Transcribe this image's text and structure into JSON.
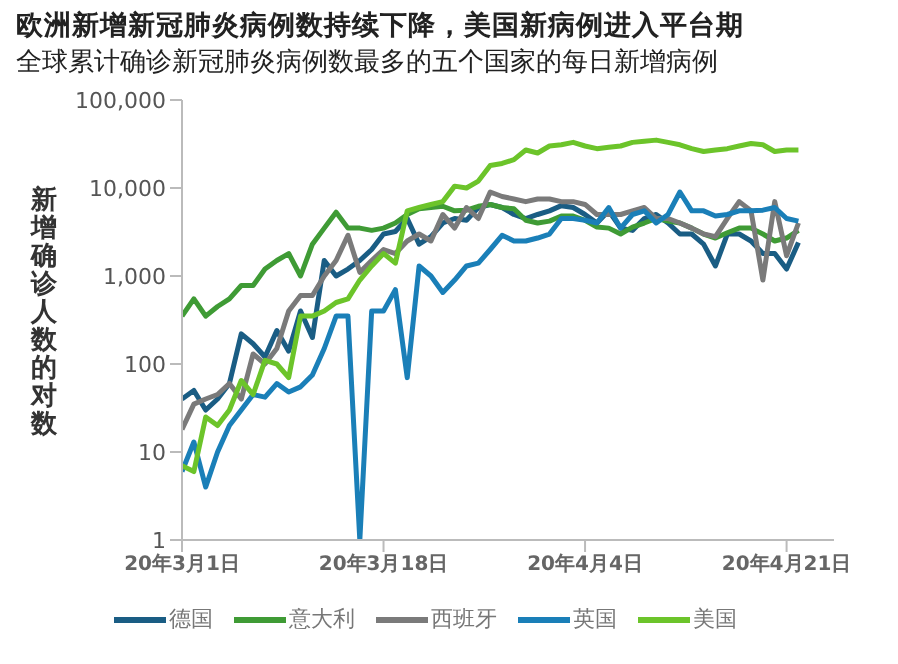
{
  "chart_data": {
    "type": "line",
    "title": "欧洲新增新冠肺炎病例数持续下降，美国新病例进入平台期",
    "subtitle": "全球累计确诊新冠肺炎病例数最多的五个国家的每日新增病例",
    "ylabel": "新增确诊人数的对数",
    "x": [
      "--03-01",
      "--03-02",
      "--03-03",
      "--03-04",
      "--03-05",
      "--03-06",
      "--03-07",
      "--03-08",
      "--03-09",
      "--03-10",
      "--03-11",
      "--03-12",
      "--03-13",
      "--03-14",
      "--03-15",
      "--03-16",
      "--03-17",
      "--03-18",
      "--03-19",
      "--03-20",
      "--03-21",
      "--03-22",
      "--03-23",
      "--03-24",
      "--03-25",
      "--03-26",
      "--03-27",
      "--03-28",
      "--03-29",
      "--03-30",
      "--03-31",
      "--04-01",
      "--04-02",
      "--04-03",
      "--04-04",
      "--04-05",
      "--04-06",
      "--04-07",
      "--04-08",
      "--04-09",
      "--04-10",
      "--04-11",
      "--04-12",
      "--04-13",
      "--04-14",
      "--04-15",
      "--04-16",
      "--04-17",
      "--04-18",
      "--04-19",
      "--04-20",
      "--04-21",
      "--04-22"
    ],
    "series": [
      {
        "name": "德国",
        "color": "#1a5d84",
        "values": [
          40,
          50,
          30,
          40,
          60,
          220,
          170,
          120,
          240,
          140,
          400,
          200,
          1500,
          1000,
          1200,
          1500,
          2000,
          3000,
          3200,
          4500,
          2300,
          2800,
          4000,
          4500,
          4300,
          6000,
          6500,
          6000,
          5000,
          4500,
          5000,
          5500,
          6300,
          6000,
          5000,
          4000,
          5500,
          3500,
          3300,
          4500,
          5000,
          4000,
          3000,
          3000,
          2300,
          1300,
          3000,
          3000,
          2500,
          1800,
          1800,
          1200,
          2400
        ]
      },
      {
        "name": "意大利",
        "color": "#3f9b35",
        "values": [
          350,
          550,
          350,
          450,
          550,
          780,
          780,
          1200,
          1500,
          1800,
          1000,
          2300,
          3500,
          5300,
          3500,
          3500,
          3300,
          3500,
          4000,
          5000,
          5800,
          6000,
          6200,
          5500,
          5600,
          6200,
          6500,
          6000,
          5800,
          4300,
          4000,
          4200,
          4800,
          4800,
          4300,
          3600,
          3500,
          3000,
          3600,
          4000,
          4500,
          4200,
          4000,
          3500,
          3000,
          2700,
          3100,
          3500,
          3500,
          3000,
          2500,
          2700,
          3300
        ]
      },
      {
        "name": "西班牙",
        "color": "#7a7a7a",
        "values": [
          18,
          35,
          40,
          45,
          60,
          40,
          130,
          100,
          150,
          400,
          600,
          600,
          1000,
          1500,
          2900,
          1100,
          1500,
          2000,
          1800,
          2500,
          3000,
          2500,
          5000,
          3500,
          6000,
          4500,
          9000,
          8000,
          7500,
          7000,
          7500,
          7500,
          7000,
          7000,
          6500,
          5000,
          5000,
          5000,
          5500,
          6000,
          4500,
          4500,
          4000,
          3500,
          3000,
          2800,
          4500,
          7000,
          5500,
          900,
          7000,
          1700,
          4000
        ]
      },
      {
        "name": "英国",
        "color": "#1a7fb8",
        "values": [
          6,
          13,
          4,
          10,
          20,
          30,
          45,
          42,
          60,
          48,
          55,
          75,
          150,
          350,
          350,
          1,
          400,
          400,
          700,
          70,
          1300,
          1000,
          650,
          900,
          1300,
          1400,
          2000,
          2900,
          2500,
          2500,
          2700,
          3000,
          4500,
          4500,
          4300,
          4000,
          6000,
          3500,
          5000,
          5500,
          4000,
          5000,
          9000,
          5500,
          5500,
          4800,
          5000,
          5500,
          5500,
          5600,
          6000,
          4500,
          4200
        ]
      },
      {
        "name": "美国",
        "color": "#6cc42a",
        "values": [
          7,
          6,
          25,
          20,
          30,
          65,
          45,
          110,
          100,
          70,
          350,
          350,
          400,
          500,
          550,
          900,
          1300,
          1800,
          1400,
          5500,
          6000,
          6500,
          7000,
          10500,
          10000,
          12000,
          18000,
          19000,
          21000,
          27000,
          25000,
          30000,
          31000,
          33000,
          30000,
          28000,
          29000,
          30000,
          33000,
          34000,
          35000,
          33000,
          31000,
          28000,
          26000,
          27000,
          28000,
          30000,
          32000,
          31000,
          26000,
          27000,
          27000
        ]
      }
    ],
    "xlim": [
      "--03-01",
      "--04-25"
    ],
    "xticks": [
      {
        "value": "--03-01",
        "label": "20年3月1日"
      },
      {
        "value": "--03-18",
        "label": "20年3月18日"
      },
      {
        "value": "--04-04",
        "label": "20年4月4日"
      },
      {
        "value": "--04-21",
        "label": "20年4月21日"
      }
    ],
    "ylim": [
      1,
      100000
    ],
    "yticks": [
      1,
      10,
      100,
      {
        "value": 1000,
        "label": "1,000"
      },
      {
        "value": 10000,
        "label": "10,000"
      },
      {
        "value": 100000,
        "label": "100,000"
      }
    ],
    "log": "y",
    "grid": false,
    "legend": "bottom",
    "marker": "none",
    "line_style": "solid"
  }
}
